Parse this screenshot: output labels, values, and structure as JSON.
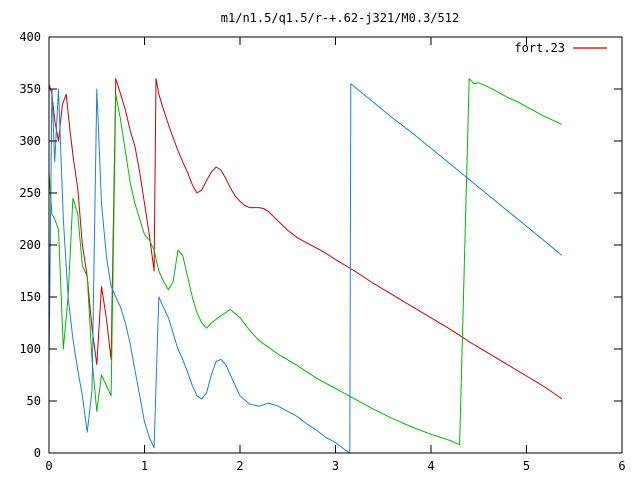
{
  "chart_data": {
    "type": "line",
    "title": "m1/n1.5/q1.5/r-+.62-j321/M0.3/512",
    "xlabel": "",
    "ylabel": "",
    "xlim": [
      0,
      6
    ],
    "ylim": [
      0,
      400
    ],
    "xticks": [
      0,
      1,
      2,
      3,
      4,
      5,
      6
    ],
    "yticks": [
      0,
      50,
      100,
      150,
      200,
      250,
      300,
      350,
      400
    ],
    "grid": false,
    "legend_position": "top-right",
    "series": [
      {
        "name": "fort.23",
        "color": "#cc0000",
        "x": [
          0.0,
          0.03,
          0.06,
          0.1,
          0.14,
          0.18,
          0.22,
          0.26,
          0.3,
          0.35,
          0.4,
          0.45,
          0.5,
          0.55,
          0.6,
          0.65,
          0.7,
          0.75,
          0.8,
          0.85,
          0.9,
          0.95,
          1.0,
          1.05,
          1.1,
          1.12,
          1.15,
          1.2,
          1.25,
          1.3,
          1.35,
          1.4,
          1.45,
          1.5,
          1.55,
          1.6,
          1.65,
          1.7,
          1.75,
          1.8,
          1.85,
          1.9,
          1.95,
          2.0,
          2.05,
          2.1,
          2.15,
          2.2,
          2.25,
          2.3,
          2.4,
          2.5,
          2.6,
          2.7,
          2.8,
          2.9,
          3.0,
          3.2,
          3.4,
          3.6,
          3.8,
          4.0,
          4.2,
          4.4,
          4.6,
          4.8,
          5.0,
          5.2,
          5.37
        ],
        "values": [
          355,
          345,
          320,
          300,
          335,
          345,
          310,
          280,
          255,
          200,
          170,
          120,
          85,
          160,
          130,
          90,
          360,
          345,
          330,
          310,
          295,
          270,
          240,
          210,
          175,
          360,
          345,
          330,
          316,
          303,
          291,
          280,
          270,
          258,
          250,
          253,
          262,
          270,
          275,
          272,
          264,
          255,
          247,
          242,
          238,
          236,
          236,
          236,
          235,
          232,
          223,
          214,
          207,
          202,
          197,
          192,
          186,
          175,
          163,
          152,
          141,
          130,
          119,
          107,
          96,
          85,
          74,
          63,
          52
        ]
      },
      {
        "name": "",
        "color": "#00bb00",
        "x": [
          0.0,
          0.03,
          0.06,
          0.1,
          0.15,
          0.2,
          0.25,
          0.3,
          0.35,
          0.4,
          0.45,
          0.5,
          0.55,
          0.6,
          0.65,
          0.7,
          0.75,
          0.8,
          0.85,
          0.9,
          0.95,
          1.0,
          1.05,
          1.1,
          1.15,
          1.2,
          1.25,
          1.3,
          1.35,
          1.4,
          1.45,
          1.5,
          1.55,
          1.6,
          1.65,
          1.7,
          1.8,
          1.9,
          2.0,
          2.1,
          2.2,
          2.4,
          2.6,
          2.8,
          3.0,
          3.2,
          3.4,
          3.6,
          3.8,
          4.0,
          4.2,
          4.3,
          4.4,
          4.45,
          4.5,
          4.6,
          4.7,
          4.8,
          4.9,
          5.0,
          5.1,
          5.2,
          5.3,
          5.37
        ],
        "values": [
          270,
          230,
          225,
          215,
          100,
          150,
          245,
          230,
          180,
          170,
          90,
          40,
          75,
          65,
          55,
          345,
          320,
          290,
          260,
          240,
          225,
          210,
          205,
          195,
          175,
          165,
          157,
          165,
          195,
          190,
          170,
          150,
          135,
          125,
          120,
          125,
          132,
          138,
          130,
          118,
          108,
          95,
          84,
          72,
          62,
          52,
          42,
          33,
          25,
          18,
          12,
          8,
          360,
          355,
          356,
          352,
          347,
          342,
          338,
          333,
          328,
          323,
          319,
          316
        ]
      },
      {
        "name": "",
        "color": "#1f7fd6",
        "x": [
          0.0,
          0.03,
          0.06,
          0.1,
          0.15,
          0.2,
          0.25,
          0.3,
          0.35,
          0.4,
          0.45,
          0.5,
          0.55,
          0.6,
          0.65,
          0.7,
          0.75,
          0.8,
          0.85,
          0.9,
          0.95,
          1.0,
          1.05,
          1.1,
          1.15,
          1.2,
          1.25,
          1.3,
          1.35,
          1.4,
          1.45,
          1.5,
          1.55,
          1.6,
          1.65,
          1.7,
          1.75,
          1.8,
          1.85,
          1.9,
          1.95,
          2.0,
          2.1,
          2.2,
          2.3,
          2.4,
          2.5,
          2.6,
          2.7,
          2.8,
          2.9,
          3.0,
          3.1,
          3.15,
          3.16,
          3.4,
          3.6,
          3.8,
          4.0,
          4.2,
          4.4,
          4.6,
          4.8,
          5.0,
          5.2,
          5.37
        ],
        "values": [
          80,
          350,
          280,
          350,
          225,
          150,
          110,
          80,
          55,
          20,
          60,
          350,
          240,
          190,
          160,
          150,
          140,
          125,
          105,
          80,
          55,
          30,
          15,
          5,
          150,
          140,
          130,
          115,
          100,
          90,
          78,
          65,
          55,
          52,
          58,
          75,
          88,
          90,
          85,
          75,
          65,
          55,
          47,
          45,
          48,
          45,
          40,
          35,
          28,
          22,
          15,
          10,
          3,
          0,
          355,
          337,
          322,
          308,
          293,
          278,
          263,
          248,
          233,
          218,
          203,
          190
        ]
      }
    ]
  }
}
